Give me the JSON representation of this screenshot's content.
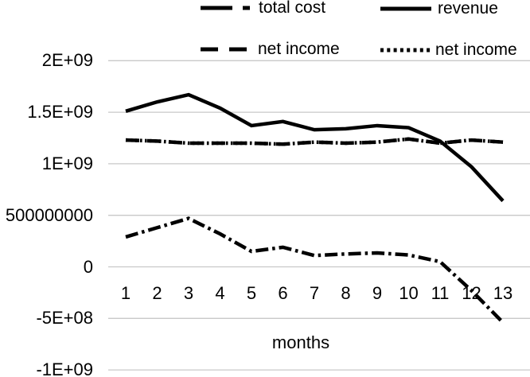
{
  "chart_data": {
    "type": "line",
    "title": "",
    "xlabel": "months",
    "ylabel": "",
    "x_categories": [
      "1",
      "2",
      "3",
      "4",
      "5",
      "6",
      "7",
      "8",
      "9",
      "10",
      "11",
      "12",
      "13"
    ],
    "y_ticks": [
      {
        "value": 2000000000,
        "label": "2E+09"
      },
      {
        "value": 1500000000,
        "label": "1.5E+09"
      },
      {
        "value": 1000000000,
        "label": "1E+09"
      },
      {
        "value": 500000000,
        "label": "500000000"
      },
      {
        "value": 0,
        "label": "0"
      },
      {
        "value": -500000000,
        "label": "-5E+08"
      },
      {
        "value": -1000000000,
        "label": "-1E+09"
      }
    ],
    "ylim": [
      -1000000000,
      2000000000
    ],
    "grid": true,
    "legend_position": "top",
    "line_color": "#000000",
    "gridline_color": "#c9c9c9",
    "series": [
      {
        "name": "total cost",
        "style": "dash-dot",
        "values": [
          290000000,
          380000000,
          470000000,
          320000000,
          150000000,
          190000000,
          110000000,
          125000000,
          135000000,
          115000000,
          50000000,
          -230000000,
          -540000000
        ]
      },
      {
        "name": "revenue",
        "style": "solid",
        "values": [
          1510000000,
          1600000000,
          1670000000,
          1540000000,
          1370000000,
          1410000000,
          1330000000,
          1340000000,
          1370000000,
          1350000000,
          1220000000,
          970000000,
          640000000
        ]
      },
      {
        "name": "net income",
        "style": "dashed",
        "values": [
          1230000000,
          1220000000,
          1200000000,
          1200000000,
          1200000000,
          1190000000,
          1210000000,
          1200000000,
          1210000000,
          1240000000,
          1200000000,
          1230000000,
          1210000000
        ]
      },
      {
        "name": "net income",
        "style": "dotted",
        "values": [
          1230000000,
          1220000000,
          1200000000,
          1200000000,
          1200000000,
          1190000000,
          1210000000,
          1200000000,
          1210000000,
          1240000000,
          1200000000,
          1230000000,
          1210000000
        ]
      }
    ],
    "plot_draw_order": [
      3,
      2,
      0,
      1
    ]
  }
}
